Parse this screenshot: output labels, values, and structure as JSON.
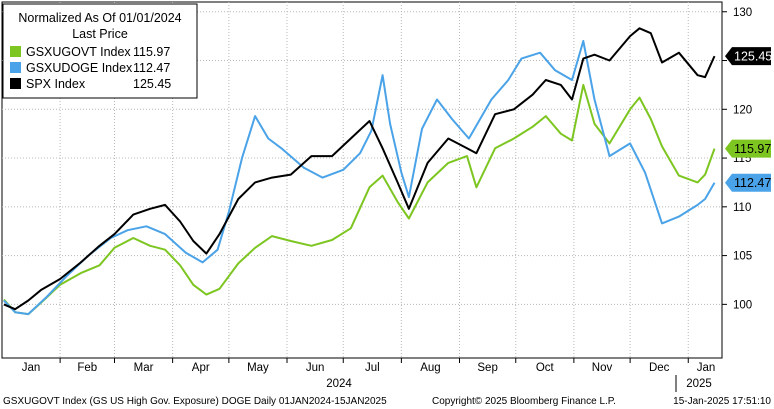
{
  "chart_data": {
    "type": "line",
    "title": "Normalized As Of 01/01/2024",
    "legend_header": "Last Price",
    "legend_position": "top-left",
    "year_label": "2024",
    "next_year_label": "2025",
    "x_axis_months": [
      "Jan",
      "Feb",
      "Mar",
      "Apr",
      "May",
      "Jun",
      "Jul",
      "Aug",
      "Sep",
      "Oct",
      "Nov",
      "Dec",
      "Jan"
    ],
    "x_range": [
      "2024-01-01",
      "2025-01-15"
    ],
    "y_axis_ticks": [
      "100",
      "105",
      "110",
      "115",
      "120",
      "125",
      "130"
    ],
    "y_axis_side": "right",
    "ylim": [
      94.5,
      131
    ],
    "grid": true,
    "series": [
      {
        "name": "GSXUGOVT Index",
        "last_price": "115.97",
        "color": "#7dc621",
        "points": [
          [
            "2024-01-02",
            100.5
          ],
          [
            "2024-01-08",
            99.2
          ],
          [
            "2024-01-15",
            99.0
          ],
          [
            "2024-01-22",
            100.2
          ],
          [
            "2024-02-01",
            102.0
          ],
          [
            "2024-02-12",
            103.2
          ],
          [
            "2024-02-22",
            104.0
          ],
          [
            "2024-03-01",
            105.8
          ],
          [
            "2024-03-11",
            106.8
          ],
          [
            "2024-03-20",
            106.0
          ],
          [
            "2024-03-28",
            105.6
          ],
          [
            "2024-04-05",
            104.0
          ],
          [
            "2024-04-12",
            102.0
          ],
          [
            "2024-04-19",
            101.0
          ],
          [
            "2024-04-26",
            101.6
          ],
          [
            "2024-05-06",
            104.2
          ],
          [
            "2024-05-15",
            105.8
          ],
          [
            "2024-05-24",
            107.0
          ],
          [
            "2024-06-03",
            106.5
          ],
          [
            "2024-06-14",
            106.0
          ],
          [
            "2024-06-25",
            106.6
          ],
          [
            "2024-07-05",
            107.8
          ],
          [
            "2024-07-15",
            112.0
          ],
          [
            "2024-07-22",
            113.2
          ],
          [
            "2024-07-30",
            110.5
          ],
          [
            "2024-08-05",
            108.8
          ],
          [
            "2024-08-15",
            112.5
          ],
          [
            "2024-08-26",
            114.5
          ],
          [
            "2024-09-05",
            115.2
          ],
          [
            "2024-09-10",
            112.0
          ],
          [
            "2024-09-20",
            116.0
          ],
          [
            "2024-09-30",
            117.0
          ],
          [
            "2024-10-10",
            118.2
          ],
          [
            "2024-10-17",
            119.3
          ],
          [
            "2024-10-25",
            117.5
          ],
          [
            "2024-10-31",
            116.8
          ],
          [
            "2024-11-06",
            122.5
          ],
          [
            "2024-11-12",
            118.5
          ],
          [
            "2024-11-20",
            116.5
          ],
          [
            "2024-12-01",
            120.0
          ],
          [
            "2024-12-06",
            121.2
          ],
          [
            "2024-12-12",
            119.0
          ],
          [
            "2024-12-18",
            116.2
          ],
          [
            "2024-12-27",
            113.2
          ],
          [
            "2025-01-06",
            112.5
          ],
          [
            "2025-01-10",
            113.3
          ],
          [
            "2025-01-15",
            115.97
          ]
        ]
      },
      {
        "name": "GSXUDOGE Index",
        "last_price": "112.47",
        "color": "#4aa3e8",
        "points": [
          [
            "2024-01-02",
            100.4
          ],
          [
            "2024-01-08",
            99.2
          ],
          [
            "2024-01-15",
            99.0
          ],
          [
            "2024-01-25",
            100.8
          ],
          [
            "2024-02-05",
            103.0
          ],
          [
            "2024-02-16",
            105.0
          ],
          [
            "2024-02-28",
            106.8
          ],
          [
            "2024-03-08",
            107.6
          ],
          [
            "2024-03-18",
            108.0
          ],
          [
            "2024-03-28",
            107.2
          ],
          [
            "2024-04-08",
            105.3
          ],
          [
            "2024-04-17",
            104.3
          ],
          [
            "2024-04-25",
            105.6
          ],
          [
            "2024-05-01",
            109.5
          ],
          [
            "2024-05-08",
            115.0
          ],
          [
            "2024-05-15",
            119.3
          ],
          [
            "2024-05-22",
            117.0
          ],
          [
            "2024-05-29",
            116.0
          ],
          [
            "2024-06-10",
            114.0
          ],
          [
            "2024-06-20",
            113.0
          ],
          [
            "2024-07-01",
            113.8
          ],
          [
            "2024-07-10",
            115.5
          ],
          [
            "2024-07-16",
            117.8
          ],
          [
            "2024-07-22",
            123.5
          ],
          [
            "2024-07-26",
            118.5
          ],
          [
            "2024-08-01",
            113.5
          ],
          [
            "2024-08-05",
            111.0
          ],
          [
            "2024-08-12",
            118.0
          ],
          [
            "2024-08-20",
            121.0
          ],
          [
            "2024-08-28",
            119.0
          ],
          [
            "2024-09-06",
            117.0
          ],
          [
            "2024-09-18",
            121.0
          ],
          [
            "2024-09-27",
            123.0
          ],
          [
            "2024-10-04",
            125.2
          ],
          [
            "2024-10-14",
            125.8
          ],
          [
            "2024-10-22",
            124.0
          ],
          [
            "2024-10-31",
            123.0
          ],
          [
            "2024-11-06",
            127.0
          ],
          [
            "2024-11-12",
            121.0
          ],
          [
            "2024-11-20",
            115.2
          ],
          [
            "2024-12-01",
            116.5
          ],
          [
            "2024-12-09",
            113.5
          ],
          [
            "2024-12-18",
            108.3
          ],
          [
            "2024-12-27",
            109.0
          ],
          [
            "2025-01-06",
            110.2
          ],
          [
            "2025-01-10",
            110.8
          ],
          [
            "2025-01-15",
            112.47
          ]
        ]
      },
      {
        "name": "SPX Index",
        "last_price": "125.45",
        "color": "#000000",
        "points": [
          [
            "2024-01-02",
            100.0
          ],
          [
            "2024-01-08",
            99.5
          ],
          [
            "2024-01-15",
            100.4
          ],
          [
            "2024-01-22",
            101.5
          ],
          [
            "2024-02-01",
            102.6
          ],
          [
            "2024-02-12",
            104.3
          ],
          [
            "2024-02-22",
            106.0
          ],
          [
            "2024-03-01",
            107.2
          ],
          [
            "2024-03-11",
            109.2
          ],
          [
            "2024-03-20",
            109.8
          ],
          [
            "2024-03-28",
            110.2
          ],
          [
            "2024-04-05",
            108.5
          ],
          [
            "2024-04-12",
            106.5
          ],
          [
            "2024-04-19",
            105.2
          ],
          [
            "2024-04-26",
            107.2
          ],
          [
            "2024-05-06",
            110.8
          ],
          [
            "2024-05-15",
            112.5
          ],
          [
            "2024-05-24",
            113.0
          ],
          [
            "2024-06-03",
            113.3
          ],
          [
            "2024-06-14",
            115.2
          ],
          [
            "2024-06-25",
            115.2
          ],
          [
            "2024-07-05",
            117.0
          ],
          [
            "2024-07-15",
            118.8
          ],
          [
            "2024-07-22",
            116.0
          ],
          [
            "2024-07-30",
            112.5
          ],
          [
            "2024-08-05",
            109.8
          ],
          [
            "2024-08-15",
            114.5
          ],
          [
            "2024-08-26",
            117.0
          ],
          [
            "2024-09-05",
            116.0
          ],
          [
            "2024-09-10",
            115.5
          ],
          [
            "2024-09-20",
            119.5
          ],
          [
            "2024-09-30",
            120.0
          ],
          [
            "2024-10-10",
            121.5
          ],
          [
            "2024-10-17",
            123.0
          ],
          [
            "2024-10-25",
            122.5
          ],
          [
            "2024-10-31",
            121.0
          ],
          [
            "2024-11-06",
            125.2
          ],
          [
            "2024-11-12",
            125.6
          ],
          [
            "2024-11-20",
            125.0
          ],
          [
            "2024-12-01",
            127.5
          ],
          [
            "2024-12-06",
            128.3
          ],
          [
            "2024-12-12",
            127.8
          ],
          [
            "2024-12-18",
            124.8
          ],
          [
            "2024-12-27",
            125.8
          ],
          [
            "2025-01-06",
            123.5
          ],
          [
            "2025-01-10",
            123.3
          ],
          [
            "2025-01-15",
            125.45
          ]
        ]
      }
    ]
  },
  "footer": {
    "left": "GSXUGOVT Index (GS US High Gov. Exposure) DOGE  Daily 01JAN2024-15JAN2025",
    "copyright": "Copyright© 2025 Bloomberg Finance L.P.",
    "timestamp": "15-Jan-2025 17:51:10"
  }
}
